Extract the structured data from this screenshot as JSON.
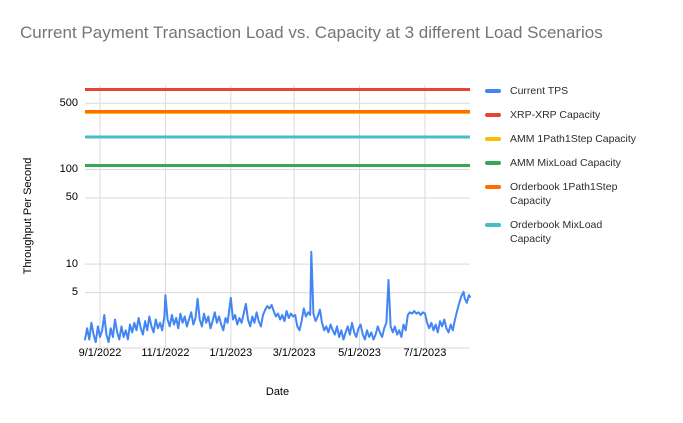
{
  "title": "Current Payment Transaction Load vs. Capacity at 3 different Load Scenarios",
  "legend": {
    "items": [
      {
        "label": "Current TPS",
        "color": "#4285F4"
      },
      {
        "label": "XRP-XRP Capacity",
        "color": "#EA4335"
      },
      {
        "label": "AMM 1Path1Step Capacity",
        "color": "#FBBC04"
      },
      {
        "label": "AMM MixLoad Capacity",
        "color": "#34A853"
      },
      {
        "label": "Orderbook 1Path1Step\nCapacity",
        "color": "#FF6D01"
      },
      {
        "label": "Orderbook MixLoad\nCapacity",
        "color": "#46BDC6"
      }
    ]
  },
  "chart_data": {
    "type": "line",
    "title": "Current Payment Transaction Load vs. Capacity at 3 different Load Scenarios",
    "grid": true,
    "legend_position": "right",
    "colors": {
      "gridline": "#d9d9d9",
      "title_text": "#757575",
      "axis_text": "#000000"
    },
    "x_axis": {
      "title": "Date",
      "domain": [
        "2022-08-18",
        "2023-08-12"
      ],
      "ticks": [
        {
          "date": "2022-09-01",
          "label": "9/1/2022"
        },
        {
          "date": "2022-11-01",
          "label": "11/1/2022"
        },
        {
          "date": "2023-01-01",
          "label": "1/1/2023"
        },
        {
          "date": "2023-03-01",
          "label": "3/1/2023"
        },
        {
          "date": "2023-05-01",
          "label": "5/1/2023"
        },
        {
          "date": "2023-07-01",
          "label": "7/1/2023"
        }
      ]
    },
    "y_axis": {
      "title": "Throughput Per Second",
      "scale": "log",
      "range": [
        1.3,
        780
      ],
      "ticks": [
        5,
        10,
        50,
        100,
        500
      ]
    },
    "capacity_series": [
      {
        "name": "XRP-XRP Capacity",
        "color": "#EA4335",
        "value": 700
      },
      {
        "name": "AMM 1Path1Step Capacity",
        "color": "#FBBC04",
        "value": 400
      },
      {
        "name": "AMM MixLoad Capacity",
        "color": "#34A853",
        "value": 110
      },
      {
        "name": "Orderbook 1Path1Step Capacity",
        "color": "#FF6D01",
        "value": 410
      },
      {
        "name": "Orderbook MixLoad Capacity",
        "color": "#46BDC6",
        "value": 220
      }
    ],
    "tps_series": {
      "name": "Current TPS",
      "color": "#4285F4",
      "points": [
        [
          "2022-08-18",
          1.6
        ],
        [
          "2022-08-20",
          2.1
        ],
        [
          "2022-08-22",
          1.6
        ],
        [
          "2022-08-24",
          2.4
        ],
        [
          "2022-08-26",
          1.8
        ],
        [
          "2022-08-28",
          1.5
        ],
        [
          "2022-08-30",
          2.2
        ],
        [
          "2022-09-01",
          1.7
        ],
        [
          "2022-09-03",
          2.0
        ],
        [
          "2022-09-05",
          2.9
        ],
        [
          "2022-09-07",
          1.8
        ],
        [
          "2022-09-09",
          1.5
        ],
        [
          "2022-09-11",
          2.1
        ],
        [
          "2022-09-13",
          1.7
        ],
        [
          "2022-09-15",
          2.6
        ],
        [
          "2022-09-17",
          1.9
        ],
        [
          "2022-09-19",
          1.6
        ],
        [
          "2022-09-21",
          2.2
        ],
        [
          "2022-09-23",
          1.7
        ],
        [
          "2022-09-25",
          2.0
        ],
        [
          "2022-09-27",
          1.6
        ],
        [
          "2022-09-29",
          2.3
        ],
        [
          "2022-10-01",
          1.9
        ],
        [
          "2022-10-03",
          2.4
        ],
        [
          "2022-10-05",
          2.0
        ],
        [
          "2022-10-07",
          2.7
        ],
        [
          "2022-10-09",
          2.1
        ],
        [
          "2022-10-11",
          1.8
        ],
        [
          "2022-10-13",
          2.5
        ],
        [
          "2022-10-15",
          2.0
        ],
        [
          "2022-10-17",
          2.8
        ],
        [
          "2022-10-19",
          2.2
        ],
        [
          "2022-10-21",
          1.9
        ],
        [
          "2022-10-23",
          2.6
        ],
        [
          "2022-10-25",
          2.1
        ],
        [
          "2022-10-27",
          2.4
        ],
        [
          "2022-10-29",
          2.0
        ],
        [
          "2022-10-31",
          2.8
        ],
        [
          "2022-11-01",
          4.7
        ],
        [
          "2022-11-03",
          2.6
        ],
        [
          "2022-11-05",
          2.2
        ],
        [
          "2022-11-07",
          2.9
        ],
        [
          "2022-11-09",
          2.3
        ],
        [
          "2022-11-11",
          2.7
        ],
        [
          "2022-11-13",
          2.1
        ],
        [
          "2022-11-15",
          3.0
        ],
        [
          "2022-11-17",
          2.4
        ],
        [
          "2022-11-19",
          2.8
        ],
        [
          "2022-11-21",
          2.2
        ],
        [
          "2022-11-23",
          2.6
        ],
        [
          "2022-11-25",
          3.1
        ],
        [
          "2022-11-27",
          2.3
        ],
        [
          "2022-11-29",
          2.7
        ],
        [
          "2022-12-01",
          4.3
        ],
        [
          "2022-12-03",
          2.6
        ],
        [
          "2022-12-05",
          2.2
        ],
        [
          "2022-12-07",
          3.0
        ],
        [
          "2022-12-09",
          2.4
        ],
        [
          "2022-12-11",
          2.8
        ],
        [
          "2022-12-13",
          2.1
        ],
        [
          "2022-12-15",
          2.5
        ],
        [
          "2022-12-17",
          3.1
        ],
        [
          "2022-12-19",
          2.4
        ],
        [
          "2022-12-21",
          2.8
        ],
        [
          "2022-12-23",
          2.3
        ],
        [
          "2022-12-25",
          2.0
        ],
        [
          "2022-12-27",
          2.7
        ],
        [
          "2022-12-29",
          2.4
        ],
        [
          "2023-01-01",
          4.4
        ],
        [
          "2023-01-03",
          2.6
        ],
        [
          "2023-01-05",
          2.9
        ],
        [
          "2023-01-07",
          2.3
        ],
        [
          "2023-01-09",
          2.7
        ],
        [
          "2023-01-11",
          2.4
        ],
        [
          "2023-01-13",
          3.0
        ],
        [
          "2023-01-15",
          3.8
        ],
        [
          "2023-01-17",
          2.6
        ],
        [
          "2023-01-19",
          2.2
        ],
        [
          "2023-01-21",
          2.8
        ],
        [
          "2023-01-23",
          2.4
        ],
        [
          "2023-01-25",
          3.1
        ],
        [
          "2023-01-27",
          2.5
        ],
        [
          "2023-01-29",
          2.2
        ],
        [
          "2023-01-31",
          2.9
        ],
        [
          "2023-02-02",
          3.3
        ],
        [
          "2023-02-04",
          3.6
        ],
        [
          "2023-02-06",
          3.4
        ],
        [
          "2023-02-08",
          3.7
        ],
        [
          "2023-02-10",
          3.2
        ],
        [
          "2023-02-12",
          2.8
        ],
        [
          "2023-02-14",
          3.0
        ],
        [
          "2023-02-16",
          2.6
        ],
        [
          "2023-02-18",
          2.9
        ],
        [
          "2023-02-20",
          2.5
        ],
        [
          "2023-02-22",
          3.2
        ],
        [
          "2023-02-24",
          2.7
        ],
        [
          "2023-02-26",
          3.0
        ],
        [
          "2023-02-28",
          2.8
        ],
        [
          "2023-03-02",
          2.9
        ],
        [
          "2023-03-04",
          2.2
        ],
        [
          "2023-03-06",
          2.0
        ],
        [
          "2023-03-08",
          2.5
        ],
        [
          "2023-03-10",
          3.4
        ],
        [
          "2023-03-12",
          2.8
        ],
        [
          "2023-03-14",
          3.1
        ],
        [
          "2023-03-16",
          2.9
        ],
        [
          "2023-03-17",
          13.5
        ],
        [
          "2023-03-19",
          3.0
        ],
        [
          "2023-03-21",
          2.5
        ],
        [
          "2023-03-23",
          2.8
        ],
        [
          "2023-03-25",
          3.3
        ],
        [
          "2023-03-27",
          2.4
        ],
        [
          "2023-03-29",
          2.0
        ],
        [
          "2023-03-31",
          2.2
        ],
        [
          "2023-04-02",
          1.9
        ],
        [
          "2023-04-04",
          2.3
        ],
        [
          "2023-04-06",
          2.0
        ],
        [
          "2023-04-08",
          1.8
        ],
        [
          "2023-04-10",
          2.2
        ],
        [
          "2023-04-12",
          1.7
        ],
        [
          "2023-04-14",
          2.0
        ],
        [
          "2023-04-16",
          1.6
        ],
        [
          "2023-04-18",
          1.9
        ],
        [
          "2023-04-20",
          2.2
        ],
        [
          "2023-04-22",
          1.8
        ],
        [
          "2023-04-24",
          2.4
        ],
        [
          "2023-04-26",
          1.9
        ],
        [
          "2023-04-28",
          1.7
        ],
        [
          "2023-04-30",
          2.1
        ],
        [
          "2023-05-02",
          2.3
        ],
        [
          "2023-05-04",
          1.8
        ],
        [
          "2023-05-06",
          1.6
        ],
        [
          "2023-05-08",
          2.0
        ],
        [
          "2023-05-10",
          1.7
        ],
        [
          "2023-05-12",
          1.9
        ],
        [
          "2023-05-14",
          1.6
        ],
        [
          "2023-05-16",
          1.8
        ],
        [
          "2023-05-18",
          2.2
        ],
        [
          "2023-05-20",
          1.9
        ],
        [
          "2023-05-22",
          1.7
        ],
        [
          "2023-05-24",
          2.1
        ],
        [
          "2023-05-26",
          2.4
        ],
        [
          "2023-05-28",
          6.8
        ],
        [
          "2023-05-30",
          2.2
        ],
        [
          "2023-06-01",
          1.9
        ],
        [
          "2023-06-03",
          2.2
        ],
        [
          "2023-06-05",
          1.8
        ],
        [
          "2023-06-07",
          2.0
        ],
        [
          "2023-06-09",
          1.7
        ],
        [
          "2023-06-11",
          2.3
        ],
        [
          "2023-06-13",
          2.0
        ],
        [
          "2023-06-15",
          2.9
        ],
        [
          "2023-06-17",
          3.1
        ],
        [
          "2023-06-19",
          3.0
        ],
        [
          "2023-06-21",
          3.2
        ],
        [
          "2023-06-23",
          3.0
        ],
        [
          "2023-06-25",
          3.1
        ],
        [
          "2023-06-27",
          2.9
        ],
        [
          "2023-06-29",
          3.1
        ],
        [
          "2023-07-01",
          3.0
        ],
        [
          "2023-07-03",
          2.4
        ],
        [
          "2023-07-05",
          2.1
        ],
        [
          "2023-07-07",
          2.4
        ],
        [
          "2023-07-09",
          2.0
        ],
        [
          "2023-07-11",
          2.3
        ],
        [
          "2023-07-13",
          1.9
        ],
        [
          "2023-07-15",
          2.5
        ],
        [
          "2023-07-17",
          2.2
        ],
        [
          "2023-07-19",
          2.6
        ],
        [
          "2023-07-21",
          2.1
        ],
        [
          "2023-07-23",
          1.9
        ],
        [
          "2023-07-25",
          2.3
        ],
        [
          "2023-07-27",
          2.0
        ],
        [
          "2023-07-29",
          2.6
        ],
        [
          "2023-07-31",
          3.2
        ],
        [
          "2023-08-02",
          3.9
        ],
        [
          "2023-08-04",
          4.6
        ],
        [
          "2023-08-06",
          5.1
        ],
        [
          "2023-08-07",
          4.4
        ],
        [
          "2023-08-09",
          3.9
        ],
        [
          "2023-08-11",
          4.7
        ],
        [
          "2023-08-12",
          4.5
        ]
      ]
    }
  }
}
